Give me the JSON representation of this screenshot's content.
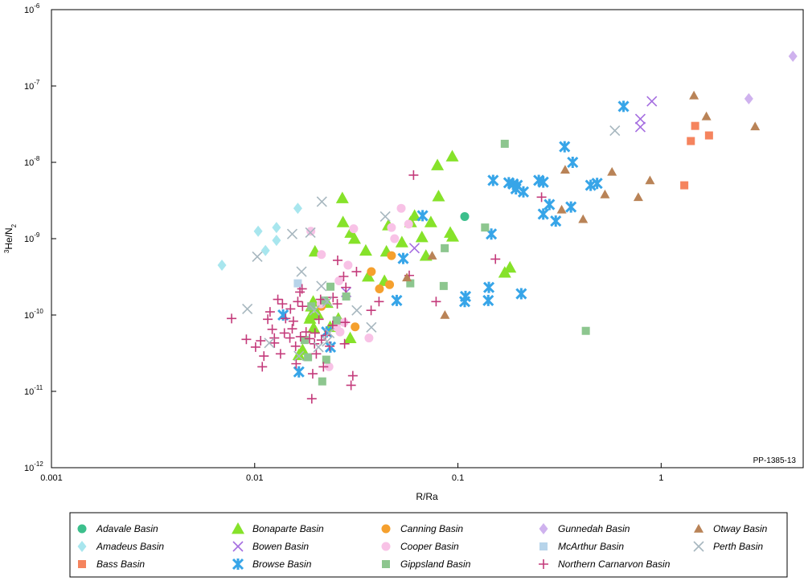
{
  "chart_data": {
    "type": "scatter",
    "xlabel": "R/Ra",
    "ylabel": "3He/N2",
    "figure_code": "PP-1385-13",
    "x_scale": "log",
    "y_scale": "log",
    "xlim": [
      0.001,
      5
    ],
    "ylim": [
      1e-12,
      1e-06
    ],
    "x_ticks": [
      {
        "value": 0.001,
        "label": "0.001"
      },
      {
        "value": 0.01,
        "label": "0.01"
      },
      {
        "value": 0.1,
        "label": "0.1"
      },
      {
        "value": 1,
        "label": "1"
      }
    ],
    "y_ticks": [
      {
        "value": 1e-06,
        "label": "10",
        "exp": "-6"
      },
      {
        "value": 1e-07,
        "label": "10",
        "exp": "-7"
      },
      {
        "value": 1e-08,
        "label": "10",
        "exp": "-8"
      },
      {
        "value": 1e-09,
        "label": "10",
        "exp": "-9"
      },
      {
        "value": 1e-10,
        "label": "10",
        "exp": "-10"
      },
      {
        "value": 1e-11,
        "label": "10",
        "exp": "-11"
      },
      {
        "value": 1e-12,
        "label": "10",
        "exp": "-12"
      }
    ],
    "grid": false,
    "legend_position": "bottom",
    "series": [
      {
        "name": "Adavale Basin",
        "marker": "circle",
        "color": "#3cbf8c",
        "points": [
          [
            0.108,
            1.95e-09
          ]
        ]
      },
      {
        "name": "Amadeus Basin",
        "marker": "diamond",
        "color": "#a8e6ee",
        "points": [
          [
            0.0069,
            4.5e-10
          ],
          [
            0.0104,
            1.25e-09
          ],
          [
            0.0113,
            7e-10
          ],
          [
            0.0128,
            9.5e-10
          ],
          [
            0.0128,
            1.4e-09
          ],
          [
            0.0163,
            2.5e-09
          ]
        ]
      },
      {
        "name": "Bass Basin",
        "marker": "square",
        "color": "#f5845e",
        "points": [
          [
            1.3,
            5e-09
          ],
          [
            1.4,
            1.9e-08
          ],
          [
            1.47,
            3e-08
          ],
          [
            1.72,
            2.25e-08
          ]
        ]
      },
      {
        "name": "Bonaparte Basin",
        "marker": "triangle",
        "color": "#86e22a",
        "points": [
          [
            0.0165,
            3e-11
          ],
          [
            0.0172,
            3.5e-11
          ],
          [
            0.0187,
            9e-11
          ],
          [
            0.019,
            1e-10
          ],
          [
            0.019,
            1.3e-10
          ],
          [
            0.0194,
            1.5e-10
          ],
          [
            0.0195,
            6.8e-11
          ],
          [
            0.0198,
            6.8e-10
          ],
          [
            0.0203,
            1.05e-10
          ],
          [
            0.0227,
            1.45e-10
          ],
          [
            0.0235,
            7e-11
          ],
          [
            0.0258,
            9e-11
          ],
          [
            0.027,
            3.4e-09
          ],
          [
            0.0272,
            1.65e-09
          ],
          [
            0.0295,
            5e-11
          ],
          [
            0.0297,
            1.2e-09
          ],
          [
            0.031,
            1e-09
          ],
          [
            0.0352,
            7e-10
          ],
          [
            0.0362,
            3.2e-10
          ],
          [
            0.0435,
            2.8e-10
          ],
          [
            0.0445,
            6.8e-10
          ],
          [
            0.0455,
            1.5e-09
          ],
          [
            0.053,
            9e-10
          ],
          [
            0.0585,
            1.65e-09
          ],
          [
            0.0612,
            2e-09
          ],
          [
            0.0665,
            1.05e-09
          ],
          [
            0.0696,
            6e-10
          ],
          [
            0.0736,
            1.65e-09
          ],
          [
            0.0793,
            9.2e-09
          ],
          [
            0.0803,
            3.6e-09
          ],
          [
            0.0917,
            1.2e-09
          ],
          [
            0.0938,
            1.2e-08
          ],
          [
            0.0942,
            1.07e-09
          ],
          [
            0.17,
            3.6e-10
          ],
          [
            0.1803,
            4.2e-10
          ]
        ]
      },
      {
        "name": "Bowen Basin",
        "marker": "x",
        "color": "#a56ee0",
        "points": [
          [
            0.0282,
            2e-10
          ],
          [
            0.0611,
            7.5e-10
          ],
          [
            0.79,
            2.9e-08
          ],
          [
            0.79,
            3.7e-08
          ],
          [
            0.9,
            6.3e-08
          ]
        ]
      },
      {
        "name": "Browse Basin",
        "marker": "asterisk",
        "color": "#37a5e8",
        "points": [
          [
            0.0138,
            1e-10
          ],
          [
            0.0165,
            1.8e-11
          ],
          [
            0.0226,
            6e-11
          ],
          [
            0.0236,
            3.8e-11
          ],
          [
            0.05,
            1.55e-10
          ],
          [
            0.0538,
            5.5e-10
          ],
          [
            0.067,
            2e-09
          ],
          [
            0.108,
            1.5e-10
          ],
          [
            0.109,
            1.75e-10
          ],
          [
            0.141,
            1.55e-10
          ],
          [
            0.142,
            2.3e-10
          ],
          [
            0.146,
            1.15e-09
          ],
          [
            0.149,
            5.8e-09
          ],
          [
            0.178,
            5.4e-09
          ],
          [
            0.187,
            5.2e-09
          ],
          [
            0.193,
            4.5e-09
          ],
          [
            0.196,
            5e-09
          ],
          [
            0.205,
            1.9e-10
          ],
          [
            0.21,
            4.1e-09
          ],
          [
            0.25,
            5.8e-09
          ],
          [
            0.263,
            5.5e-09
          ],
          [
            0.263,
            2.1e-09
          ],
          [
            0.282,
            2.8e-09
          ],
          [
            0.303,
            1.7e-09
          ],
          [
            0.335,
            1.6e-08
          ],
          [
            0.36,
            2.6e-09
          ],
          [
            0.367,
            1e-08
          ],
          [
            0.45,
            5e-09
          ],
          [
            0.484,
            5.3e-09
          ],
          [
            0.653,
            5.4e-08
          ]
        ]
      },
      {
        "name": "Canning Basin",
        "marker": "circle",
        "color": "#f5a02e",
        "points": [
          [
            0.0213,
            1.3e-10
          ],
          [
            0.0312,
            7e-11
          ],
          [
            0.0375,
            3.7e-10
          ],
          [
            0.0411,
            2.2e-10
          ],
          [
            0.0461,
            2.5e-10
          ],
          [
            0.0471,
            6e-10
          ]
        ]
      },
      {
        "name": "Cooper Basin",
        "marker": "circle",
        "color": "#f8c2e6",
        "points": [
          [
            0.0189,
            1.25e-09
          ],
          [
            0.0212,
            1.4e-10
          ],
          [
            0.0213,
            6.2e-10
          ],
          [
            0.0232,
            2.1e-11
          ],
          [
            0.0252,
            7e-11
          ],
          [
            0.026,
            2.8e-10
          ],
          [
            0.0263,
            6e-11
          ],
          [
            0.0275,
            8e-11
          ],
          [
            0.0288,
            4.5e-10
          ],
          [
            0.0307,
            1.35e-09
          ],
          [
            0.0365,
            5e-11
          ],
          [
            0.0471,
            1.4e-09
          ],
          [
            0.0488,
            1e-09
          ],
          [
            0.0526,
            2.5e-09
          ],
          [
            0.0572,
            1.55e-09
          ]
        ]
      },
      {
        "name": "Gippsland Basin",
        "marker": "square",
        "color": "#8dc68f",
        "points": [
          [
            0.0176,
            4.7e-11
          ],
          [
            0.0183,
            2.8e-11
          ],
          [
            0.019,
            1.3e-10
          ],
          [
            0.0215,
            1.35e-11
          ],
          [
            0.022,
            1.55e-10
          ],
          [
            0.0225,
            2.6e-11
          ],
          [
            0.0236,
            2.35e-10
          ],
          [
            0.0253,
            8.5e-11
          ],
          [
            0.0282,
            1.75e-10
          ],
          [
            0.0583,
            2.6e-10
          ],
          [
            0.0851,
            2.4e-10
          ],
          [
            0.0861,
            7.5e-10
          ],
          [
            0.136,
            1.4e-09
          ],
          [
            0.17,
            1.75e-08
          ],
          [
            0.426,
            6.2e-11
          ]
        ]
      },
      {
        "name": "Gunnedah Basin",
        "marker": "diamond",
        "color": "#cfb2ee",
        "points": [
          [
            2.7,
            6.8e-08
          ],
          [
            4.45,
            2.45e-07
          ]
        ]
      },
      {
        "name": "McArthur Basin",
        "marker": "square",
        "color": "#b7d4ea",
        "points": [
          [
            0.0163,
            2.6e-10
          ]
        ]
      },
      {
        "name": "Northern Carnarvon Basin",
        "marker": "plus",
        "color": "#c43b7b",
        "points": [
          [
            0.0077,
            9e-11
          ],
          [
            0.0091,
            4.8e-11
          ],
          [
            0.0101,
            3.8e-11
          ],
          [
            0.0107,
            4.6e-11
          ],
          [
            0.0109,
            2.1e-11
          ],
          [
            0.0111,
            2.9e-11
          ],
          [
            0.0116,
            8.8e-11
          ],
          [
            0.0119,
            1.1e-10
          ],
          [
            0.0122,
            6.5e-11
          ],
          [
            0.0125,
            4.3e-11
          ],
          [
            0.0125,
            5e-11
          ],
          [
            0.013,
            1.6e-10
          ],
          [
            0.0134,
            3.1e-11
          ],
          [
            0.0137,
            1.4e-10
          ],
          [
            0.014,
            5.8e-11
          ],
          [
            0.0142,
            9e-11
          ],
          [
            0.0149,
            5e-11
          ],
          [
            0.015,
            1.2e-10
          ],
          [
            0.0153,
            6.6e-11
          ],
          [
            0.0155,
            8.3e-11
          ],
          [
            0.0159,
            3.9e-11
          ],
          [
            0.016,
            2.3e-11
          ],
          [
            0.0163,
            1.5e-10
          ],
          [
            0.0167,
            2e-10
          ],
          [
            0.0168,
            5.2e-11
          ],
          [
            0.0171,
            2.2e-10
          ],
          [
            0.0172,
            1.3e-10
          ],
          [
            0.0179,
            6e-11
          ],
          [
            0.0186,
            4.9e-11
          ],
          [
            0.0191,
            8e-12
          ],
          [
            0.0193,
            1.7e-11
          ],
          [
            0.0197,
            4.2e-11
          ],
          [
            0.0198,
            5.8e-11
          ],
          [
            0.0201,
            3.1e-11
          ],
          [
            0.0207,
            8.8e-11
          ],
          [
            0.0211,
            1.6e-10
          ],
          [
            0.0213,
            4.7e-11
          ],
          [
            0.0218,
            2.1e-11
          ],
          [
            0.0223,
            5.4e-11
          ],
          [
            0.0234,
            3.9e-11
          ],
          [
            0.0242,
            7.3e-11
          ],
          [
            0.0243,
            1.7e-10
          ],
          [
            0.0255,
            1.4e-10
          ],
          [
            0.0256,
            5.2e-10
          ],
          [
            0.0274,
            3.2e-10
          ],
          [
            0.0277,
            4.2e-11
          ],
          [
            0.0279,
            8e-11
          ],
          [
            0.0281,
            2.3e-10
          ],
          [
            0.0298,
            1.2e-11
          ],
          [
            0.0304,
            1.6e-11
          ],
          [
            0.0317,
            3.7e-10
          ],
          [
            0.0374,
            1.15e-10
          ],
          [
            0.0409,
            1.5e-10
          ],
          [
            0.0576,
            3.3e-10
          ],
          [
            0.0605,
            6.8e-09
          ],
          [
            0.0781,
            1.5e-10
          ],
          [
            0.153,
            5.4e-10
          ],
          [
            0.258,
            3.5e-09
          ]
        ]
      },
      {
        "name": "Otway Basin",
        "marker": "triangle",
        "color": "#b98357",
        "points": [
          [
            0.0561,
            3.1e-10
          ],
          [
            0.0747,
            6e-10
          ],
          [
            0.0863,
            1e-10
          ],
          [
            0.324,
            2.4e-09
          ],
          [
            0.337,
            8e-09
          ],
          [
            0.413,
            1.8e-09
          ],
          [
            0.529,
            3.8e-09
          ],
          [
            0.573,
            7.5e-09
          ],
          [
            0.772,
            3.5e-09
          ],
          [
            0.881,
            5.8e-09
          ],
          [
            1.45,
            7.5e-08
          ],
          [
            1.67,
            4e-08
          ],
          [
            2.9,
            2.95e-08
          ]
        ]
      },
      {
        "name": "Perth Basin",
        "marker": "x",
        "color": "#a7b7bf",
        "points": [
          [
            0.0092,
            1.2e-10
          ],
          [
            0.0103,
            5.8e-10
          ],
          [
            0.0118,
            4.3e-11
          ],
          [
            0.0153,
            1.15e-09
          ],
          [
            0.0165,
            2.9e-11
          ],
          [
            0.017,
            3.7e-10
          ],
          [
            0.0188,
            1.2e-09
          ],
          [
            0.0197,
            1.15e-10
          ],
          [
            0.0206,
            3.8e-11
          ],
          [
            0.0213,
            2.4e-10
          ],
          [
            0.0214,
            3.05e-09
          ],
          [
            0.0227,
            4.5e-11
          ],
          [
            0.0228,
            1.5e-10
          ],
          [
            0.0233,
            5.8e-11
          ],
          [
            0.0318,
            1.15e-10
          ],
          [
            0.0375,
            6.9e-11
          ],
          [
            0.0439,
            1.95e-09
          ],
          [
            0.592,
            2.6e-08
          ]
        ]
      }
    ]
  }
}
